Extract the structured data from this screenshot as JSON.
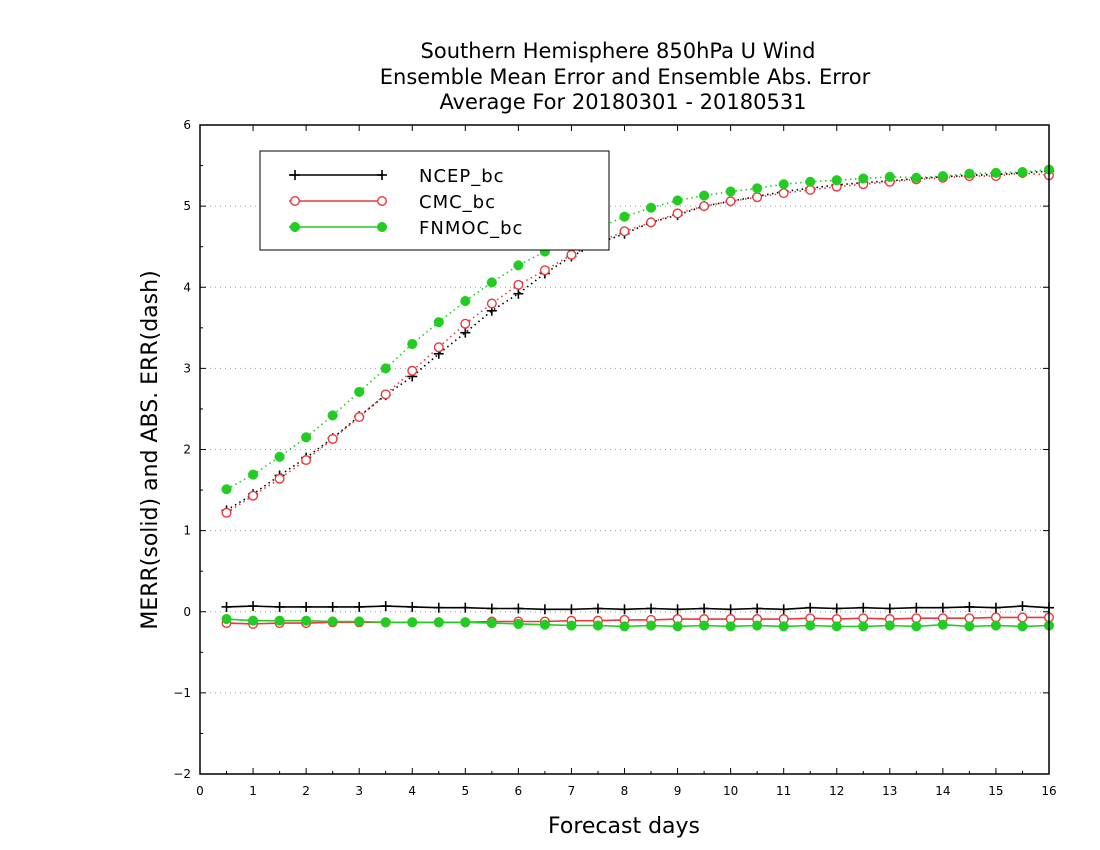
{
  "chart_data": {
    "type": "line",
    "title_lines": [
      "Southern Hemisphere 850hPa U Wind",
      "Ensemble Mean Error and Ensemble Abs. Error",
      "Average For 20180301 - 20180531"
    ],
    "xlabel": "Forecast days",
    "ylabel": "MERR(solid) and ABS. ERR(dash)",
    "xlim": [
      0,
      16
    ],
    "ylim": [
      -2,
      6
    ],
    "x_ticks": [
      0,
      1,
      2,
      3,
      4,
      5,
      6,
      7,
      8,
      9,
      10,
      11,
      12,
      13,
      14,
      15,
      16
    ],
    "y_ticks": [
      -2,
      -1,
      0,
      1,
      2,
      3,
      4,
      5,
      6
    ],
    "grid": "horizontal-dotted",
    "legend": {
      "placement": "top-left",
      "entries": [
        "NCEP_bc",
        "CMC_bc",
        "FNMOC_bc"
      ]
    },
    "x": [
      0.5,
      1.0,
      1.5,
      2.0,
      2.5,
      3.0,
      3.5,
      4.0,
      4.5,
      5.0,
      5.5,
      6.0,
      6.5,
      7.0,
      7.5,
      8.0,
      8.5,
      9.0,
      9.5,
      10.0,
      10.5,
      11.0,
      11.5,
      12.0,
      12.5,
      13.0,
      13.5,
      14.0,
      14.5,
      15.0,
      15.5,
      16.0
    ],
    "series": [
      {
        "name": "NCEP_bc",
        "color": "#000000",
        "marker": "plus",
        "merr": [
          0.06,
          0.07,
          0.06,
          0.06,
          0.06,
          0.06,
          0.07,
          0.06,
          0.05,
          0.05,
          0.04,
          0.04,
          0.03,
          0.03,
          0.04,
          0.03,
          0.04,
          0.03,
          0.04,
          0.03,
          0.04,
          0.03,
          0.05,
          0.04,
          0.05,
          0.04,
          0.05,
          0.05,
          0.06,
          0.05,
          0.07,
          0.05
        ],
        "abs_err": [
          1.25,
          1.45,
          1.68,
          1.9,
          2.14,
          2.41,
          2.67,
          2.9,
          3.18,
          3.44,
          3.71,
          3.92,
          4.17,
          4.38,
          4.54,
          4.66,
          4.8,
          4.89,
          5.0,
          5.06,
          5.12,
          5.18,
          5.22,
          5.26,
          5.29,
          5.31,
          5.34,
          5.36,
          5.38,
          5.39,
          5.41,
          5.43
        ]
      },
      {
        "name": "CMC_bc",
        "color": "#e8393e",
        "marker": "open-circle",
        "merr": [
          -0.14,
          -0.15,
          -0.14,
          -0.14,
          -0.13,
          -0.13,
          -0.13,
          -0.13,
          -0.13,
          -0.13,
          -0.12,
          -0.12,
          -0.12,
          -0.11,
          -0.11,
          -0.1,
          -0.1,
          -0.09,
          -0.09,
          -0.09,
          -0.09,
          -0.09,
          -0.08,
          -0.09,
          -0.08,
          -0.09,
          -0.08,
          -0.08,
          -0.08,
          -0.07,
          -0.07,
          -0.07
        ],
        "abs_err": [
          1.22,
          1.43,
          1.64,
          1.87,
          2.13,
          2.4,
          2.68,
          2.97,
          3.26,
          3.55,
          3.8,
          4.03,
          4.21,
          4.4,
          4.55,
          4.69,
          4.8,
          4.91,
          5.0,
          5.06,
          5.11,
          5.16,
          5.2,
          5.24,
          5.27,
          5.3,
          5.33,
          5.35,
          5.37,
          5.37,
          5.41,
          5.38
        ]
      },
      {
        "name": "FNMOC_bc",
        "color": "#22cc22",
        "marker": "filled-circle",
        "merr": [
          -0.09,
          -0.11,
          -0.11,
          -0.11,
          -0.12,
          -0.12,
          -0.13,
          -0.13,
          -0.13,
          -0.13,
          -0.14,
          -0.15,
          -0.16,
          -0.17,
          -0.17,
          -0.18,
          -0.17,
          -0.18,
          -0.17,
          -0.18,
          -0.17,
          -0.18,
          -0.17,
          -0.18,
          -0.18,
          -0.17,
          -0.18,
          -0.16,
          -0.18,
          -0.17,
          -0.18,
          -0.17
        ],
        "abs_err": [
          1.51,
          1.69,
          1.91,
          2.15,
          2.42,
          2.71,
          3.0,
          3.3,
          3.57,
          3.83,
          4.06,
          4.27,
          4.44,
          4.58,
          4.73,
          4.87,
          4.98,
          5.07,
          5.13,
          5.18,
          5.22,
          5.27,
          5.3,
          5.32,
          5.34,
          5.36,
          5.35,
          5.37,
          5.4,
          5.41,
          5.42,
          5.45
        ]
      }
    ]
  }
}
